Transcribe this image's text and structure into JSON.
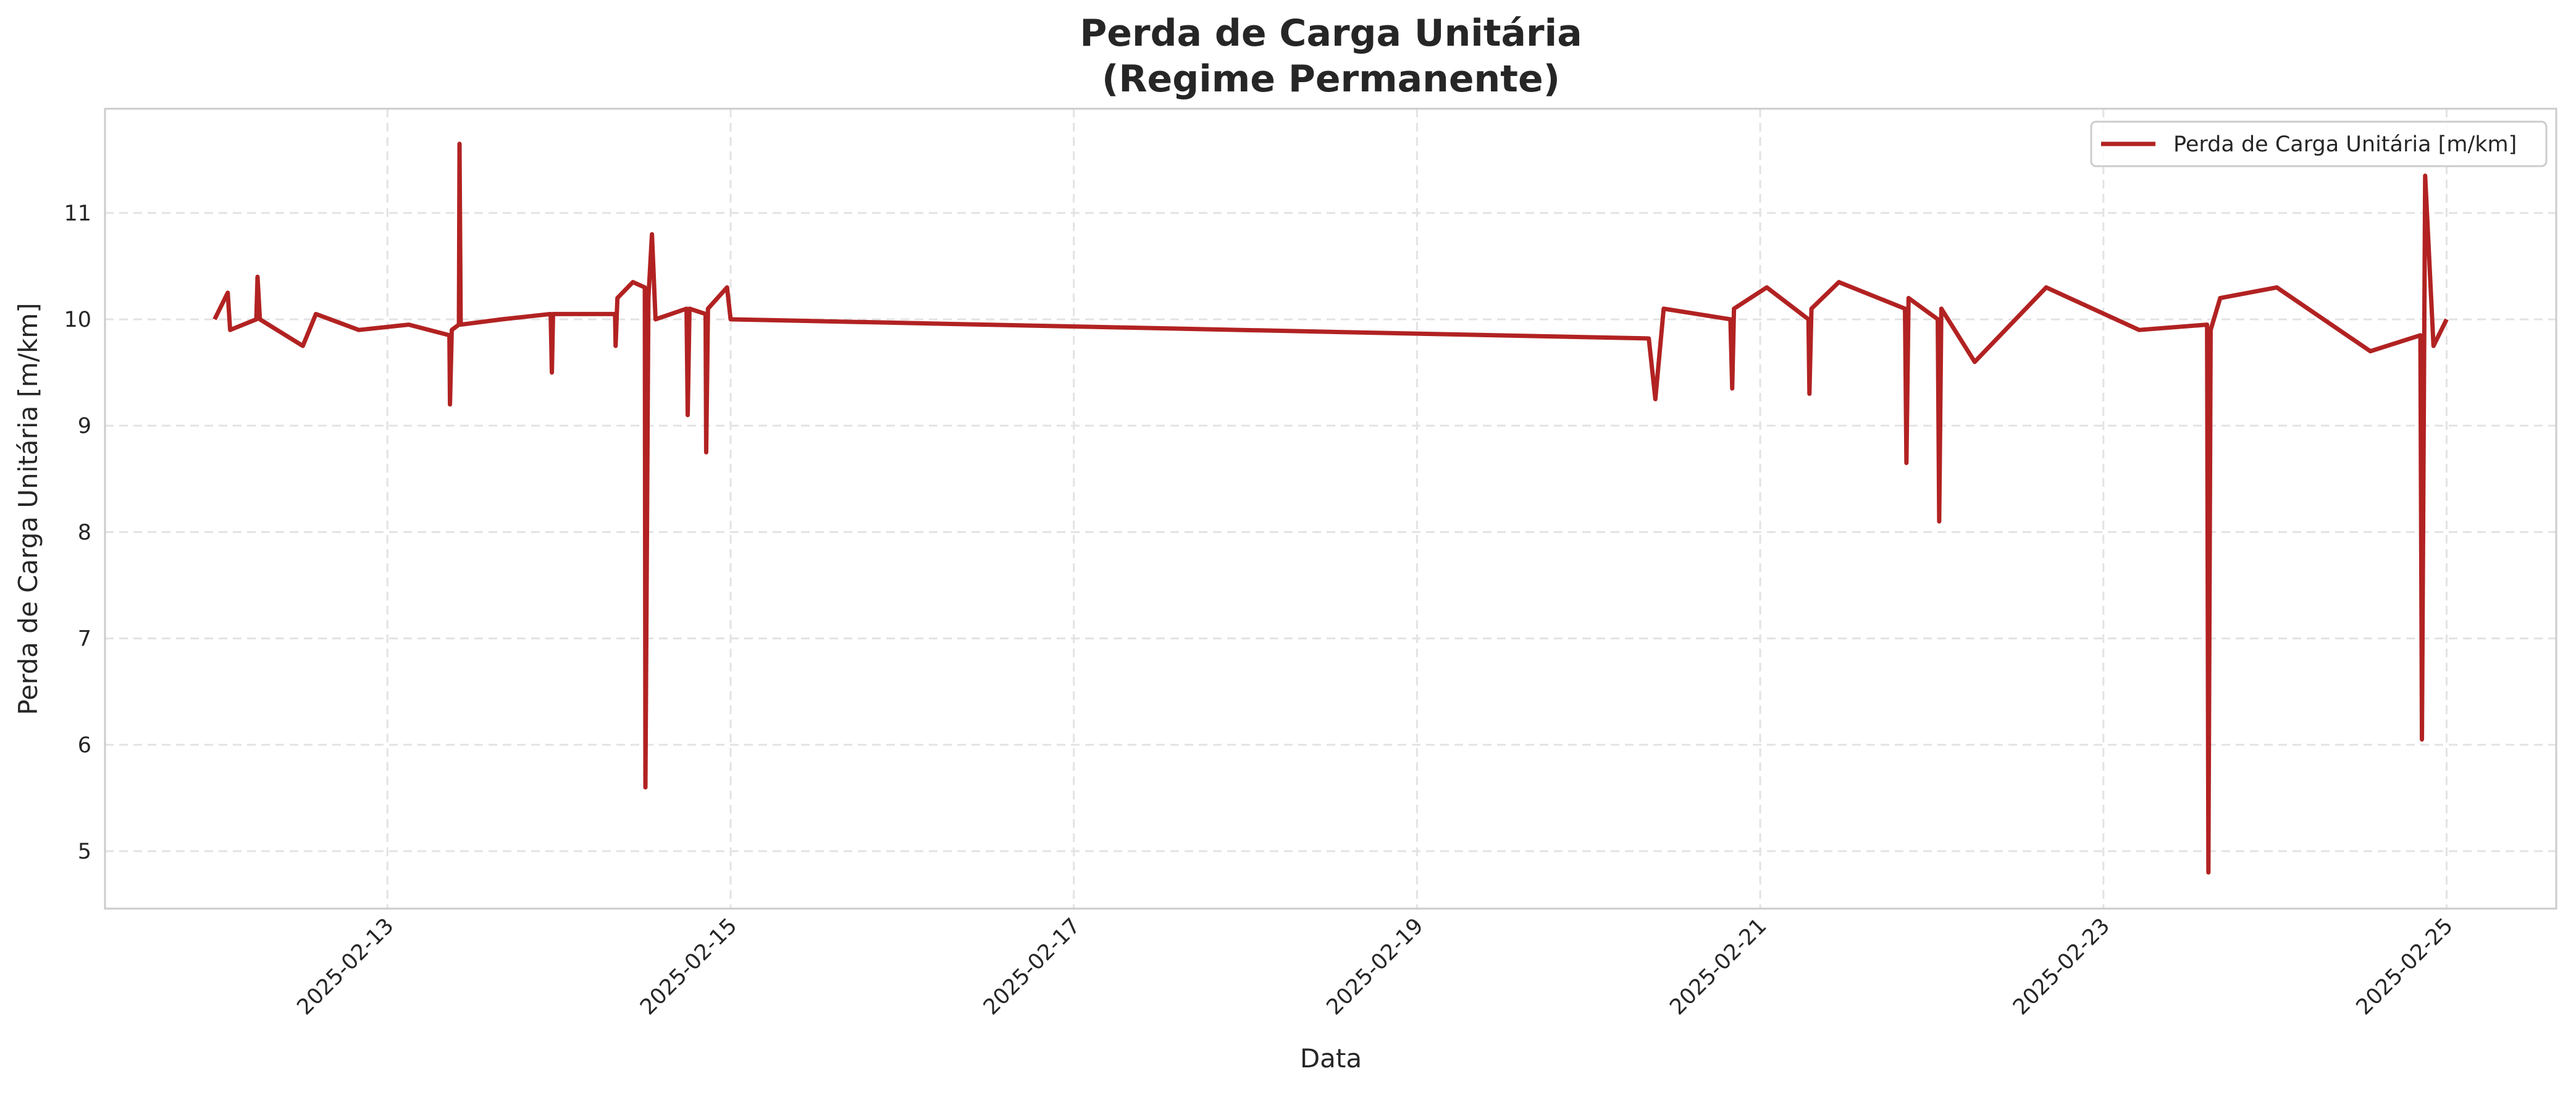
{
  "chart_data": {
    "type": "line",
    "title": [
      "Perda de Carga Unitária",
      "(Regime Permanente)"
    ],
    "x_label": "Data",
    "y_label": "Perda de Carga Unitária [m/km]",
    "xlim": [
      "2025-02-11T08:30",
      "2025-02-25T15:20"
    ],
    "xticks": [
      "2025-02-13",
      "2025-02-15",
      "2025-02-17",
      "2025-02-19",
      "2025-02-21",
      "2025-02-23",
      "2025-02-25"
    ],
    "ylim": [
      4.46,
      11.98
    ],
    "yticks": [
      5,
      6,
      7,
      8,
      9,
      10,
      11
    ],
    "grid": true,
    "legend": "upper right",
    "x": [
      "2025-02-11T23:50",
      "2025-02-12T01:40",
      "2025-02-12T02:00",
      "2025-02-12T05:40",
      "2025-02-12T05:50",
      "2025-02-12T06:10",
      "2025-02-12T12:10",
      "2025-02-12T14:00",
      "2025-02-12T20:00",
      "2025-02-13T03:00",
      "2025-02-13T08:40",
      "2025-02-13T08:45",
      "2025-02-13T09:00",
      "2025-02-13T10:00",
      "2025-02-13T10:05",
      "2025-02-13T10:15",
      "2025-02-13T16:00",
      "2025-02-13T22:50",
      "2025-02-13T23:00",
      "2025-02-13T23:10",
      "2025-02-14T07:50",
      "2025-02-14T07:55",
      "2025-02-14T08:10",
      "2025-02-14T10:20",
      "2025-02-14T12:00",
      "2025-02-14T12:05",
      "2025-02-14T12:30",
      "2025-02-14T13:00",
      "2025-02-14T13:30",
      "2025-02-14T17:50",
      "2025-02-14T18:00",
      "2025-02-14T18:15",
      "2025-02-14T20:30",
      "2025-02-14T20:35",
      "2025-02-14T20:50",
      "2025-02-14T23:30",
      "2025-02-15T00:00",
      "2025-02-20T08:25",
      "2025-02-20T09:20",
      "2025-02-20T10:30",
      "2025-02-20T19:50",
      "2025-02-20T20:05",
      "2025-02-20T20:20",
      "2025-02-21T00:55",
      "2025-02-21T06:45",
      "2025-02-21T06:53",
      "2025-02-21T07:10",
      "2025-02-21T11:00",
      "2025-02-21T20:15",
      "2025-02-21T20:27",
      "2025-02-21T20:45",
      "2025-02-22T00:50",
      "2025-02-22T01:02",
      "2025-02-22T01:20",
      "2025-02-22T06:00",
      "2025-02-22T16:00",
      "2025-02-23T05:00",
      "2025-02-23T14:30",
      "2025-02-23T14:41",
      "2025-02-23T15:00",
      "2025-02-23T16:20",
      "2025-02-24T00:15",
      "2025-02-24T13:20",
      "2025-02-24T20:20",
      "2025-02-24T20:33",
      "2025-02-24T21:00",
      "2025-02-24T22:10",
      "2025-02-25T00:00"
    ],
    "series": [
      {
        "name": "Perda de Carga Unitária [m/km]",
        "color": "#b22222",
        "values": [
          10.0,
          10.25,
          9.9,
          10.0,
          10.4,
          10.0,
          9.75,
          10.05,
          9.9,
          9.95,
          9.85,
          9.2,
          9.9,
          9.95,
          11.65,
          9.95,
          10.0,
          10.05,
          9.5,
          10.05,
          10.05,
          9.75,
          10.2,
          10.35,
          10.3,
          5.6,
          10.2,
          10.8,
          10.0,
          10.1,
          9.1,
          10.1,
          10.05,
          8.75,
          10.1,
          10.3,
          10.0,
          9.82,
          9.25,
          10.1,
          10.0,
          9.35,
          10.1,
          10.3,
          10.0,
          9.3,
          10.1,
          10.35,
          10.1,
          8.65,
          10.2,
          10.0,
          8.1,
          10.1,
          9.6,
          10.3,
          9.9,
          9.95,
          4.8,
          9.9,
          10.2,
          10.3,
          9.7,
          9.85,
          6.05,
          11.35,
          9.75,
          10.0
        ]
      }
    ]
  }
}
